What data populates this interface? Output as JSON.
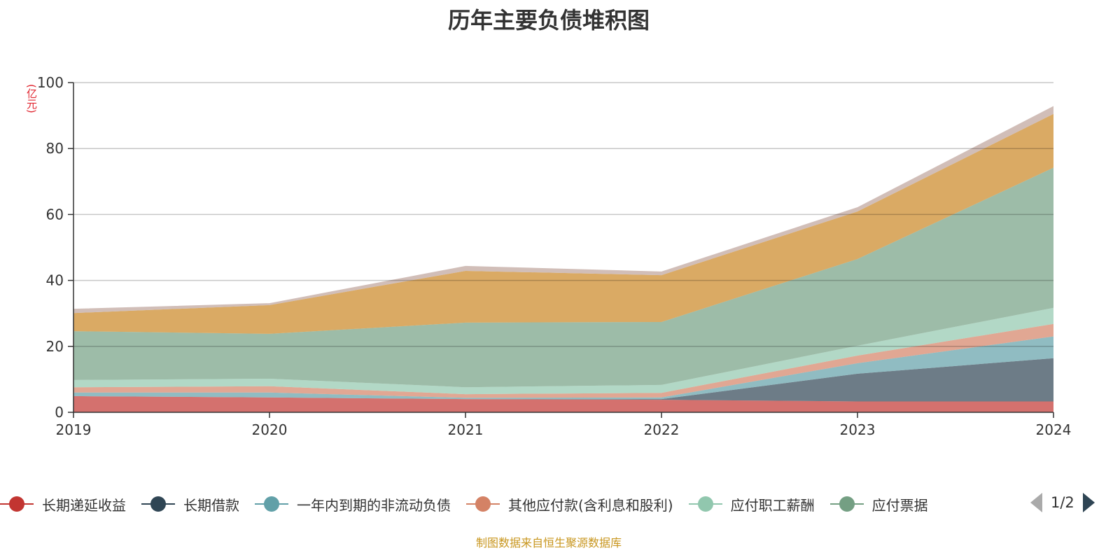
{
  "chart_data": {
    "type": "area",
    "stacked": true,
    "title": "历年主要负债堆积图",
    "ylabel": "(亿元)",
    "xlabel": "",
    "categories": [
      "2019",
      "2020",
      "2021",
      "2022",
      "2023",
      "2024"
    ],
    "ylim": [
      0,
      100
    ],
    "yticks": [
      0,
      20,
      40,
      60,
      80,
      100
    ],
    "grid": true,
    "legend_placement": "bottom",
    "series": [
      {
        "name": "长期递延收益",
        "color": "#c23531",
        "values": [
          4.9,
          4.5,
          4.0,
          3.8,
          3.3,
          3.3
        ]
      },
      {
        "name": "长期借款",
        "color": "#2f4554",
        "values": [
          0,
          0,
          0,
          0.2,
          8.4,
          13.1
        ]
      },
      {
        "name": "一年内到期的非流动负债",
        "color": "#61a0a8",
        "values": [
          1.1,
          1.5,
          0.4,
          0.5,
          3.2,
          6.6
        ]
      },
      {
        "name": "其他应付款(含利息和股利)",
        "color": "#d48265",
        "values": [
          1.6,
          1.9,
          1.1,
          1.4,
          2.3,
          3.8
        ]
      },
      {
        "name": "应付职工薪酬",
        "color": "#91c7ae",
        "values": [
          2.2,
          2.3,
          2.1,
          2.4,
          3.0,
          4.9
        ]
      },
      {
        "name": "应付票据",
        "color": "#749f83",
        "values": [
          14.8,
          13.6,
          19.6,
          19.1,
          26.3,
          42.5
        ]
      },
      {
        "color": "#ca8622",
        "values": [
          5.5,
          8.7,
          15.7,
          14.2,
          14.4,
          16.3
        ]
      },
      {
        "color": "#bda29a",
        "values": [
          1.3,
          0.6,
          1.5,
          1.1,
          1.3,
          2.4
        ]
      }
    ]
  },
  "legend": {
    "visible_items": [
      "长期递延收益",
      "长期借款",
      "一年内到期的非流动负债",
      "其他应付款(含利息和股利)",
      "应付职工薪酬",
      "应付票据"
    ],
    "page": "1/2",
    "prev_icon": "triangle-left-icon",
    "next_icon": "triangle-right-icon"
  },
  "footer": "制图数据来自恒生聚源数据库"
}
